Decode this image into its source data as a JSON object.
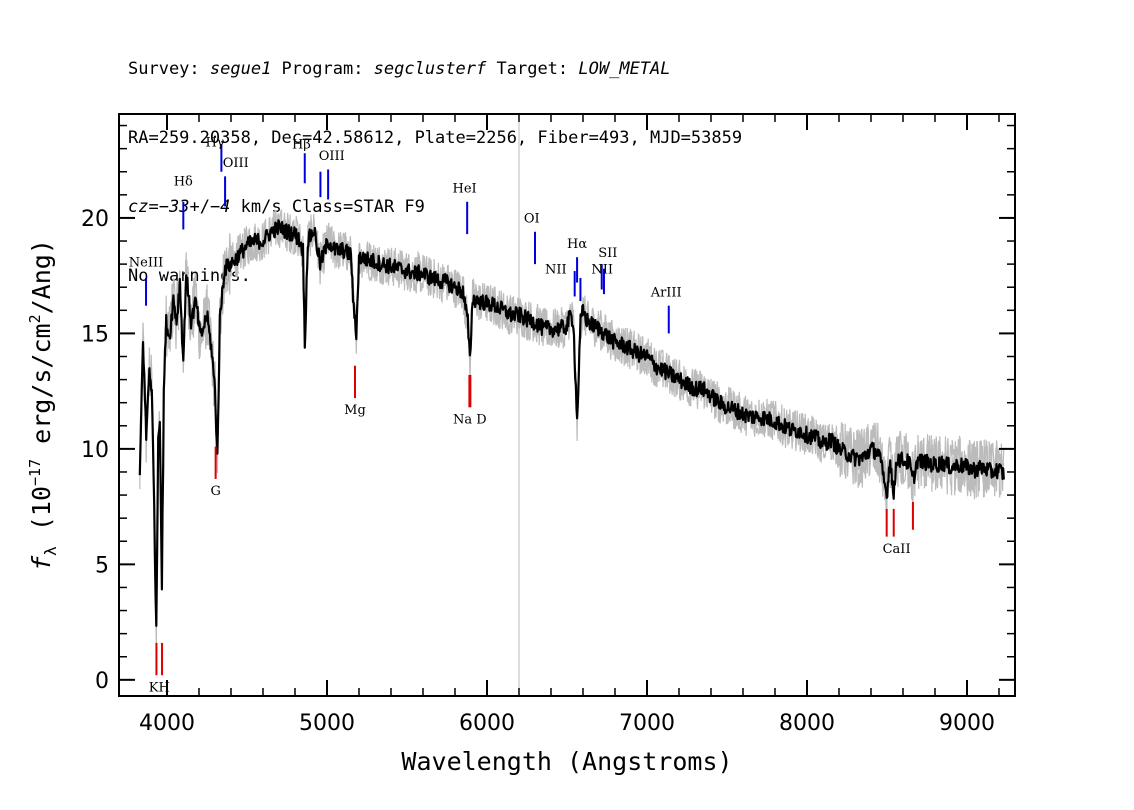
{
  "header": {
    "line1": {
      "survey_label": "Survey: ",
      "survey": "segue1",
      "program_label": " Program: ",
      "program": "segclusterf",
      "target_label": " Target: ",
      "target": "LOW_METAL"
    },
    "line2": "RA=259.20358, Dec=42.58612, Plate=2256, Fiber=493, MJD=53859",
    "line3": {
      "cz_label": "cz",
      "cz_eq": "=",
      "cz_value": "−33",
      "cz_pm": "+/",
      "cz_err": "−4",
      "cz_rest": " km/s Class=STAR F9"
    },
    "line4": "No warnings."
  },
  "chart_data": {
    "type": "line",
    "xlabel": "Wavelength (Angstroms)",
    "ylabel_parts": {
      "f": "f",
      "lambda": "λ",
      "a": " (10",
      "exp": "−17",
      "b": " erg/s/cm",
      "sq": "2",
      "c": "/Ang)"
    },
    "xlim": [
      3700,
      9300
    ],
    "ylim": [
      -0.7,
      24.5
    ],
    "xticks": [
      4000,
      5000,
      6000,
      7000,
      8000,
      9000
    ],
    "xtick_labels": [
      "4000",
      "5000",
      "6000",
      "7000",
      "8000",
      "9000"
    ],
    "yticks": [
      0,
      5,
      10,
      15,
      20
    ],
    "ytick_labels": [
      "0",
      "5",
      "10",
      "15",
      "20"
    ],
    "vertical_marker_x": 6200,
    "grid": false,
    "series": [
      {
        "color": "#000000",
        "noise_color": "#bbbbbb",
        "x": [
          3830,
          3850,
          3870,
          3890,
          3905,
          3920,
          3933,
          3945,
          3955,
          3968,
          3980,
          3995,
          4015,
          4040,
          4060,
          4080,
          4102,
          4120,
          4150,
          4180,
          4210,
          4250,
          4280,
          4300,
          4315,
          4330,
          4345,
          4360,
          4400,
          4450,
          4500,
          4550,
          4600,
          4650,
          4700,
          4750,
          4800,
          4830,
          4850,
          4861,
          4880,
          4920,
          4957,
          5007,
          5050,
          5100,
          5150,
          5167,
          5183,
          5200,
          5250,
          5300,
          5350,
          5400,
          5450,
          5500,
          5550,
          5600,
          5650,
          5700,
          5750,
          5800,
          5850,
          5880,
          5893,
          5910,
          5950,
          6000,
          6050,
          6100,
          6150,
          6200,
          6250,
          6300,
          6350,
          6400,
          6450,
          6500,
          6520,
          6540,
          6563,
          6585,
          6600,
          6620,
          6650,
          6700,
          6750,
          6800,
          6850,
          6900,
          6950,
          7000,
          7050,
          7100,
          7150,
          7200,
          7250,
          7300,
          7350,
          7400,
          7450,
          7500,
          7550,
          7600,
          7650,
          7700,
          7750,
          7800,
          7850,
          7900,
          7950,
          8000,
          8050,
          8100,
          8150,
          8200,
          8250,
          8300,
          8350,
          8400,
          8450,
          8498,
          8520,
          8542,
          8560,
          8600,
          8640,
          8662,
          8690,
          8750,
          8800,
          8850,
          8900,
          8950,
          9000,
          9050,
          9100,
          9150,
          9200,
          9230
        ],
        "y": [
          8.8,
          14.8,
          10.5,
          13.5,
          12.5,
          7.5,
          2.0,
          10.5,
          11.5,
          4.0,
          12.5,
          15.5,
          14.8,
          16.5,
          15.5,
          17.2,
          13.8,
          17.6,
          15.5,
          16.4,
          14.8,
          15.8,
          14.2,
          12.5,
          9.6,
          15.5,
          16.8,
          17.8,
          18.0,
          18.4,
          18.8,
          19.0,
          19.0,
          19.4,
          19.6,
          19.4,
          19.3,
          19.0,
          18.6,
          14.5,
          19.0,
          19.5,
          18.0,
          19.0,
          18.6,
          18.6,
          18.4,
          16.0,
          15.0,
          18.3,
          18.2,
          18.1,
          18.0,
          17.9,
          17.8,
          17.7,
          17.6,
          17.6,
          17.4,
          17.3,
          17.2,
          17.0,
          16.8,
          15.5,
          13.8,
          16.5,
          16.4,
          16.3,
          16.2,
          16.0,
          15.8,
          15.8,
          15.6,
          15.5,
          15.2,
          15.2,
          15.2,
          15.3,
          15.8,
          15.5,
          11.2,
          15.5,
          16.0,
          15.6,
          15.4,
          15.2,
          14.9,
          14.6,
          14.5,
          14.3,
          14.1,
          14.0,
          13.6,
          13.4,
          13.2,
          13.0,
          12.8,
          12.6,
          12.6,
          12.3,
          12.0,
          11.8,
          11.7,
          11.5,
          11.4,
          11.4,
          11.3,
          11.2,
          11.0,
          10.8,
          10.8,
          10.6,
          10.5,
          10.2,
          10.4,
          10.0,
          9.8,
          9.6,
          9.6,
          10.0,
          9.8,
          8.0,
          9.6,
          7.9,
          9.6,
          9.5,
          9.4,
          8.6,
          9.5,
          9.4,
          9.3,
          9.4,
          9.2,
          9.3,
          9.2,
          9.1,
          9.2,
          9.0,
          9.1,
          8.9
        ]
      }
    ],
    "emission_lines": [
      {
        "label": "NeIII",
        "x": 3869,
        "y0": 16.2,
        "y1": 17.4,
        "label_y": 17.9
      },
      {
        "label": "Hδ",
        "x": 4102,
        "y0": 19.5,
        "y1": 20.7,
        "label_y": 21.4
      },
      {
        "label": "Hγ",
        "x": 4340,
        "y0": 22.0,
        "y1": 23.2,
        "label_y": 23.4
      },
      {
        "label": "OIII",
        "x": 4363,
        "y0": 20.5,
        "y1": 21.8,
        "label_y": 22.2
      },
      {
        "label": "Hβ",
        "x": 4861,
        "y0": 21.5,
        "y1": 22.8,
        "label_y": 23.0
      },
      {
        "label": "OIII",
        "x": 4959,
        "y0": 20.9,
        "y1": 22.0,
        "label_y": 22.5
      },
      {
        "label": "OIII",
        "x": 5007,
        "y0": 20.8,
        "y1": 22.1,
        "label_y": 22.5
      },
      {
        "label": "HeI",
        "x": 5876,
        "y0": 19.3,
        "y1": 20.7,
        "label_y": 21.1
      },
      {
        "label": "OI",
        "x": 6300,
        "y0": 18.0,
        "y1": 19.4,
        "label_y": 19.8
      },
      {
        "label": "NII",
        "x": 6548,
        "y0": 16.6,
        "y1": 17.7,
        "label_y": 17.6
      },
      {
        "label": "Hα",
        "x": 6563,
        "y0": 17.2,
        "y1": 18.3,
        "label_y": 18.7
      },
      {
        "label": "NII",
        "x": 6584,
        "y0": 16.4,
        "y1": 17.4,
        "label_y": 17.6
      },
      {
        "label": "SII",
        "x": 6717,
        "y0": 16.9,
        "y1": 18.0,
        "label_y": 18.3
      },
      {
        "label": "SII",
        "x": 6731,
        "y0": 16.7,
        "y1": 17.8,
        "label_y": 18.3
      },
      {
        "label": "ArIII",
        "x": 7136,
        "y0": 15.0,
        "y1": 16.2,
        "label_y": 16.6
      }
    ],
    "absorption_lines": [
      {
        "label": "K",
        "x": 3934,
        "y0": 0.2,
        "y1": 1.6,
        "label_y": -0.5
      },
      {
        "label": "H",
        "x": 3969,
        "y0": 0.2,
        "y1": 1.6,
        "label_y": -0.5
      },
      {
        "label": "G",
        "x": 4304,
        "y0": 8.7,
        "y1": 10.1,
        "label_y": 8.0
      },
      {
        "label": "Mg",
        "x": 5175,
        "y0": 12.2,
        "y1": 13.6,
        "label_y": 11.5
      },
      {
        "label": "Na",
        "x": 5890,
        "y0": 11.8,
        "y1": 13.2,
        "label_y": 11.1
      },
      {
        "label": "D",
        "x": 5896,
        "y0": 11.8,
        "y1": 13.2,
        "label_y": 11.1
      },
      {
        "label": "CaII",
        "x": 8498,
        "y0": 6.2,
        "y1": 7.4,
        "label_y": 5.5
      },
      {
        "label": "CaII",
        "x": 8542,
        "y0": 6.2,
        "y1": 7.4,
        "label_y": 5.5
      },
      {
        "label": "CaII",
        "x": 8662,
        "y0": 6.5,
        "y1": 7.7,
        "label_y": 5.5
      }
    ],
    "absorption_text_labels": [
      {
        "text": "KH",
        "x": 3952,
        "y": -0.5
      },
      {
        "text": "G",
        "x": 4304,
        "y": 8.0
      },
      {
        "text": "Mg",
        "x": 5175,
        "y": 11.5
      },
      {
        "text": "Na  D",
        "x": 5893,
        "y": 11.1
      },
      {
        "text": "CaII",
        "x": 8560,
        "y": 5.5
      }
    ],
    "emission_text_labels": [
      {
        "text": "NeIII",
        "x": 3869,
        "y": 17.9
      },
      {
        "text": "Hδ",
        "x": 4102,
        "y": 21.4
      },
      {
        "text": "Hγ",
        "x": 4300,
        "y": 23.1
      },
      {
        "text": "OIII",
        "x": 4430,
        "y": 22.2
      },
      {
        "text": "Hβ",
        "x": 4840,
        "y": 23.0
      },
      {
        "text": "OIII",
        "x": 5030,
        "y": 22.5
      },
      {
        "text": "HeI",
        "x": 5860,
        "y": 21.1
      },
      {
        "text": "OI",
        "x": 6280,
        "y": 19.8
      },
      {
        "text": "NII",
        "x": 6430,
        "y": 17.6
      },
      {
        "text": "Hα",
        "x": 6563,
        "y": 18.7
      },
      {
        "text": "NII",
        "x": 6720,
        "y": 17.6
      },
      {
        "text": "SII",
        "x": 6755,
        "y": 18.3
      },
      {
        "text": "ArIII",
        "x": 7120,
        "y": 16.6
      }
    ],
    "colors": {
      "emission": "#0000dd",
      "absorption": "#dd0000",
      "marker": "#bbbbbb",
      "axis": "#000000"
    }
  }
}
